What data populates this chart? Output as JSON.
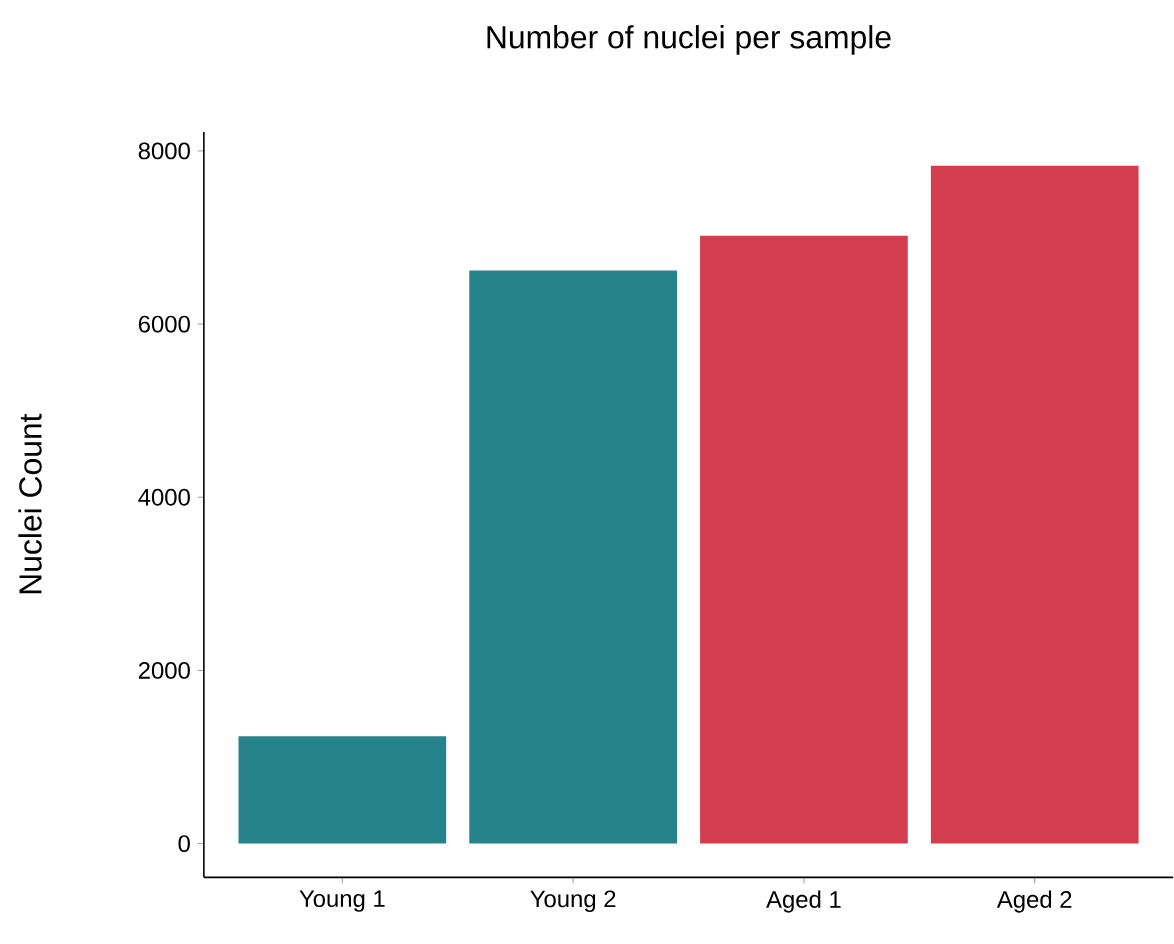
{
  "chart_data": {
    "type": "bar",
    "title": "Number of nuclei per sample",
    "ylabel": "Nuclei Count",
    "categories": [
      "Young 1",
      "Young 2",
      "Aged 1",
      "Aged 2"
    ],
    "values": [
      1240,
      6620,
      7020,
      7830
    ],
    "colors": [
      "#26838b",
      "#26838b",
      "#d33d50",
      "#d33d50"
    ],
    "ylim": [
      -390,
      8220
    ],
    "yticks": [
      0,
      2000,
      4000,
      6000,
      8000
    ],
    "grid": false
  }
}
